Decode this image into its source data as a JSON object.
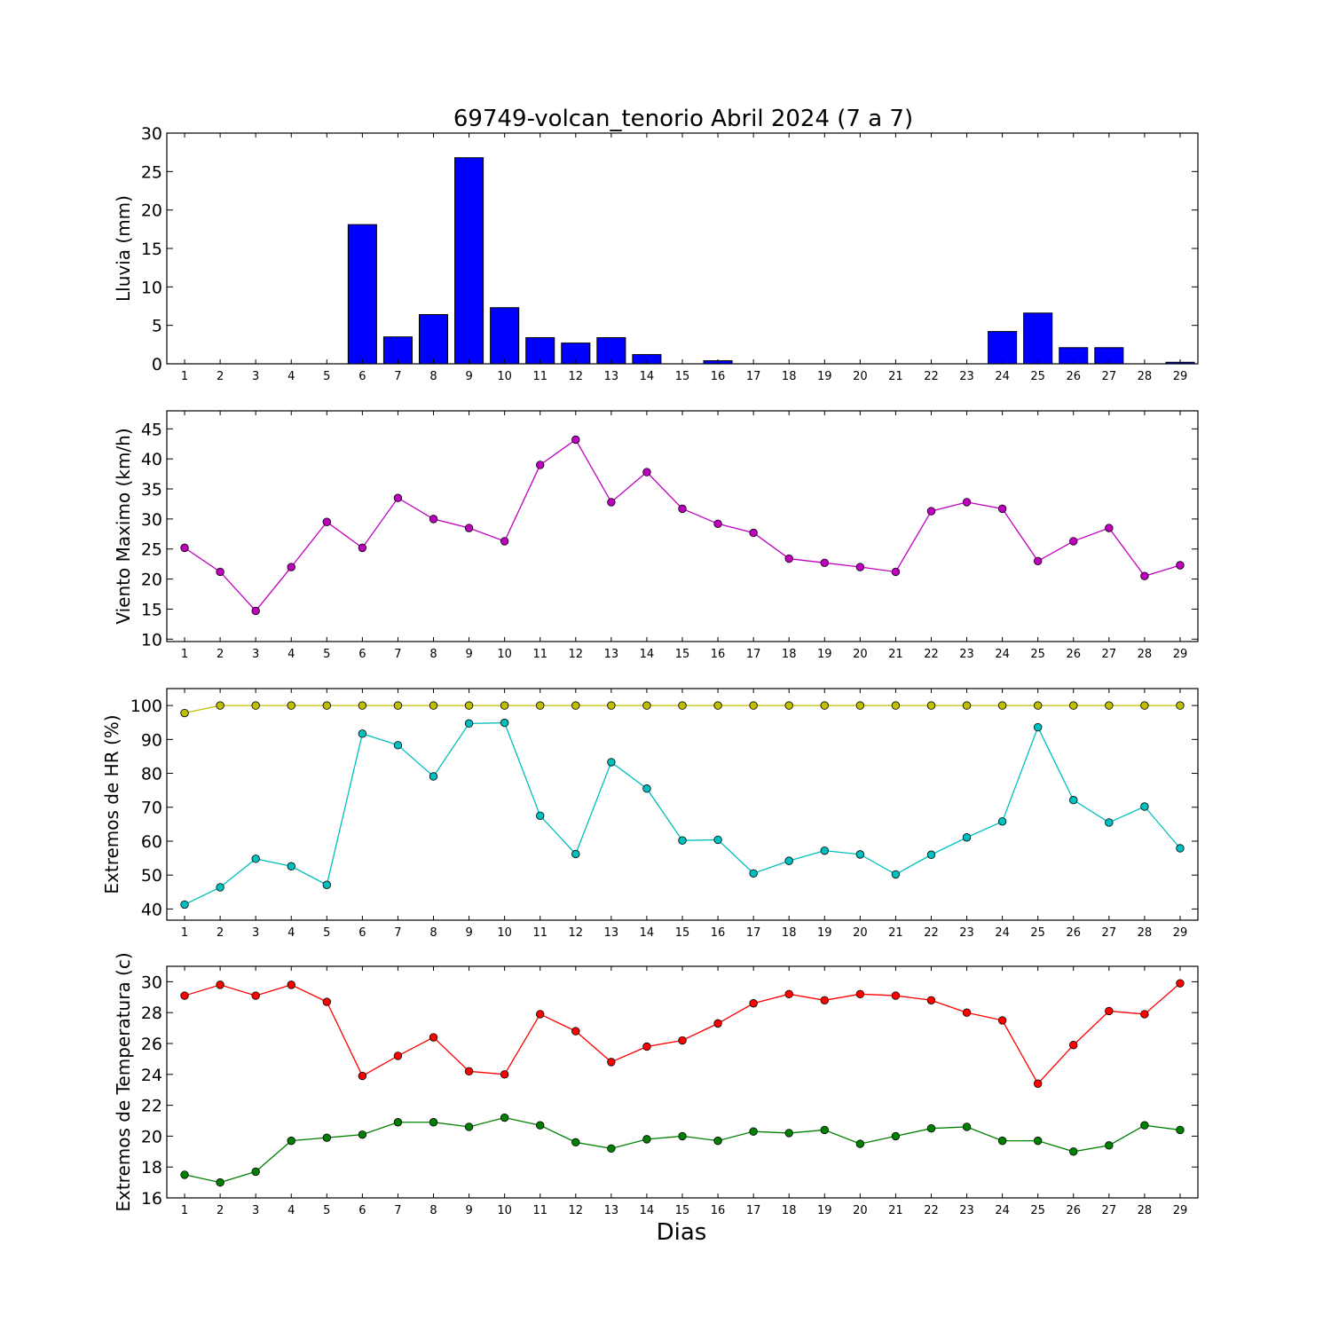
{
  "title": "69749-volcan_tenorio Abril 2024  (7 a 7)",
  "xlabel": "Dias",
  "chart_data": [
    {
      "type": "bar",
      "ylabel": "Lluvia (mm)",
      "ylim": [
        0,
        30
      ],
      "yticks": [
        0,
        5,
        10,
        15,
        20,
        25,
        30
      ],
      "x": [
        1,
        2,
        3,
        4,
        5,
        6,
        7,
        8,
        9,
        10,
        11,
        12,
        13,
        14,
        15,
        16,
        17,
        18,
        19,
        20,
        21,
        22,
        23,
        24,
        25,
        26,
        27,
        28,
        29
      ],
      "series": [
        {
          "color": "#0000ff",
          "values": [
            0,
            0,
            0,
            0,
            0,
            18.1,
            3.5,
            6.4,
            26.8,
            7.3,
            3.4,
            2.7,
            3.4,
            1.2,
            0,
            0.4,
            0,
            0,
            0,
            0,
            0,
            0,
            0,
            4.2,
            6.6,
            2.1,
            2.1,
            0,
            0.2
          ]
        }
      ]
    },
    {
      "type": "line",
      "ylabel": "Viento Maximo (km/h)",
      "ylim": [
        9.6,
        48
      ],
      "yticks": [
        10,
        15,
        20,
        25,
        30,
        35,
        40,
        45
      ],
      "x": [
        1,
        2,
        3,
        4,
        5,
        6,
        7,
        8,
        9,
        10,
        11,
        12,
        13,
        14,
        15,
        16,
        17,
        18,
        19,
        20,
        21,
        22,
        23,
        24,
        25,
        26,
        27,
        28,
        29
      ],
      "series": [
        {
          "color": "#bf00bf",
          "values": [
            25.2,
            21.2,
            14.7,
            22.0,
            29.5,
            25.2,
            33.5,
            30.0,
            28.5,
            26.3,
            39.0,
            43.2,
            32.8,
            37.8,
            31.7,
            29.2,
            27.7,
            23.4,
            22.7,
            22.0,
            21.2,
            31.3,
            32.8,
            31.7,
            23.0,
            26.3,
            28.5,
            20.5,
            22.3
          ]
        }
      ]
    },
    {
      "type": "line",
      "ylabel": "Extremos de HR (%)",
      "ylim": [
        36.7,
        105
      ],
      "yticks": [
        40,
        50,
        60,
        70,
        80,
        90,
        100
      ],
      "x": [
        1,
        2,
        3,
        4,
        5,
        6,
        7,
        8,
        9,
        10,
        11,
        12,
        13,
        14,
        15,
        16,
        17,
        18,
        19,
        20,
        21,
        22,
        23,
        24,
        25,
        26,
        27,
        28,
        29
      ],
      "series": [
        {
          "color": "#bfbf00",
          "values": [
            97.8,
            100,
            100,
            100,
            100,
            100,
            100,
            100,
            100,
            100,
            100,
            100,
            100,
            100,
            100,
            100,
            100,
            100,
            100,
            100,
            100,
            100,
            100,
            100,
            100,
            100,
            100,
            100,
            100
          ]
        },
        {
          "color": "#00bfbf",
          "values": [
            41.3,
            46.4,
            54.8,
            52.6,
            47.1,
            91.7,
            88.3,
            79.1,
            94.7,
            94.9,
            67.5,
            56.2,
            83.3,
            75.5,
            60.2,
            60.4,
            50.5,
            54.2,
            57.2,
            56.1,
            50.2,
            56.0,
            61.1,
            65.8,
            93.6,
            72.1,
            65.5,
            70.2,
            57.9
          ]
        }
      ]
    },
    {
      "type": "line",
      "ylabel": "Extremos de Temperatura (c)",
      "ylim": [
        16,
        31
      ],
      "yticks": [
        16,
        18,
        20,
        22,
        24,
        26,
        28,
        30
      ],
      "x": [
        1,
        2,
        3,
        4,
        5,
        6,
        7,
        8,
        9,
        10,
        11,
        12,
        13,
        14,
        15,
        16,
        17,
        18,
        19,
        20,
        21,
        22,
        23,
        24,
        25,
        26,
        27,
        28,
        29
      ],
      "series": [
        {
          "color": "#ff0000",
          "values": [
            29.1,
            29.8,
            29.1,
            29.8,
            28.7,
            23.9,
            25.2,
            26.4,
            24.2,
            24.0,
            27.9,
            26.8,
            24.8,
            25.8,
            26.2,
            27.3,
            28.6,
            29.2,
            28.8,
            29.2,
            29.1,
            28.8,
            28.0,
            27.5,
            23.4,
            25.9,
            28.1,
            27.9,
            29.9
          ]
        },
        {
          "color": "#008000",
          "values": [
            17.5,
            17.0,
            17.7,
            19.7,
            19.9,
            20.1,
            20.9,
            20.9,
            20.6,
            21.2,
            20.7,
            19.6,
            19.2,
            19.8,
            20.0,
            19.7,
            20.3,
            20.2,
            20.4,
            19.5,
            20.0,
            20.5,
            20.6,
            19.7,
            19.7,
            19.0,
            19.4,
            20.7,
            20.4
          ]
        }
      ]
    }
  ]
}
